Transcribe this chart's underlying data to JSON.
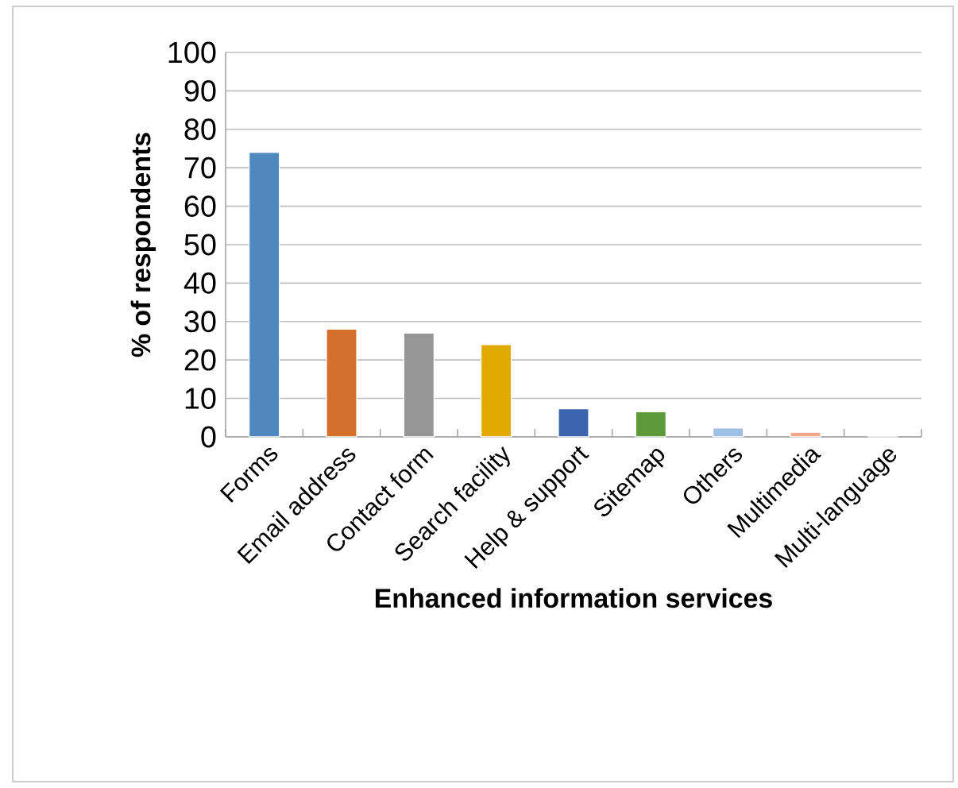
{
  "chart_data": {
    "type": "bar",
    "xlabel": "Enhanced information services",
    "ylabel": "% of respondents",
    "categories": [
      "Forms",
      "Email address",
      "Contact form",
      "Search facility",
      "Help & support",
      "Sitemap",
      "Others",
      "Multimedia",
      "Multi-language"
    ],
    "values": [
      74,
      28,
      27,
      24,
      7.3,
      6.5,
      2.3,
      1.2,
      0
    ],
    "colors": [
      "#4f88bd",
      "#d4702b",
      "#969696",
      "#e0aa00",
      "#3c63ad",
      "#5f9a3a",
      "#9dc0e4",
      "#f3a98b",
      "#5b9bd5"
    ],
    "ylim": [
      0,
      100
    ],
    "yticks": [
      0,
      10,
      20,
      30,
      40,
      50,
      60,
      70,
      80,
      90,
      100
    ],
    "grid": "y"
  }
}
